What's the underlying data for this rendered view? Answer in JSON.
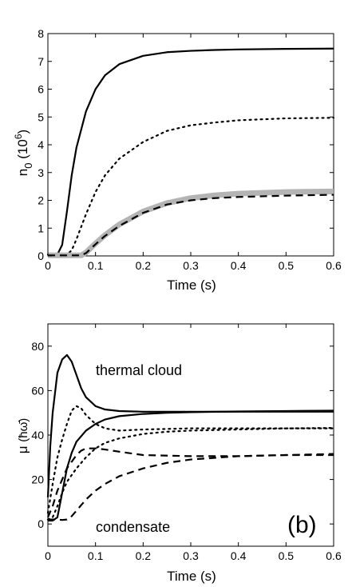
{
  "chart_data": [
    {
      "type": "line",
      "xlabel": "Time  (s)",
      "ylabel_main": "n",
      "ylabel_sub": "0",
      "ylabel_unit_pre": "(10",
      "ylabel_unit_exp": "6",
      "ylabel_unit_post": ")",
      "xlim": [
        0,
        0.6
      ],
      "ylim": [
        0,
        8
      ],
      "xticks": [
        "0",
        "0.1",
        "0.2",
        "0.3",
        "0.4",
        "0.5",
        "0.6"
      ],
      "yticks": [
        "0",
        "1",
        "2",
        "3",
        "4",
        "5",
        "6",
        "7",
        "8"
      ],
      "grid": false,
      "series": [
        {
          "style": "solid",
          "color": "#000000",
          "x": [
            0,
            0.02,
            0.03,
            0.04,
            0.05,
            0.06,
            0.08,
            0.1,
            0.12,
            0.15,
            0.2,
            0.25,
            0.3,
            0.35,
            0.4,
            0.5,
            0.6
          ],
          "y": [
            0.05,
            0.05,
            0.4,
            1.6,
            2.9,
            3.9,
            5.2,
            6.0,
            6.5,
            6.9,
            7.2,
            7.33,
            7.38,
            7.41,
            7.43,
            7.45,
            7.46
          ]
        },
        {
          "style": "dotted",
          "color": "#000000",
          "x": [
            0,
            0.04,
            0.05,
            0.06,
            0.08,
            0.1,
            0.12,
            0.15,
            0.2,
            0.25,
            0.3,
            0.35,
            0.4,
            0.5,
            0.6
          ],
          "y": [
            0.05,
            0.05,
            0.2,
            0.6,
            1.5,
            2.3,
            2.9,
            3.5,
            4.1,
            4.5,
            4.7,
            4.8,
            4.88,
            4.95,
            4.97
          ]
        },
        {
          "style": "thick-gray",
          "color": "#b4b4b4",
          "x": [
            0,
            0.07,
            0.08,
            0.1,
            0.12,
            0.15,
            0.2,
            0.25,
            0.3,
            0.35,
            0.4,
            0.5,
            0.6
          ],
          "y": [
            0.02,
            0.02,
            0.12,
            0.45,
            0.75,
            1.13,
            1.6,
            1.9,
            2.08,
            2.18,
            2.24,
            2.3,
            2.32
          ]
        },
        {
          "style": "dashed",
          "color": "#000000",
          "x": [
            0,
            0.07,
            0.08,
            0.1,
            0.12,
            0.15,
            0.2,
            0.25,
            0.3,
            0.35,
            0.4,
            0.5,
            0.6
          ],
          "y": [
            0.02,
            0.02,
            0.1,
            0.42,
            0.72,
            1.08,
            1.55,
            1.85,
            2.0,
            2.08,
            2.12,
            2.17,
            2.2
          ]
        }
      ]
    },
    {
      "type": "line",
      "xlabel": "Time  (s)",
      "ylabel_main": "μ",
      "ylabel_unit": "(ħω̄)",
      "xlim": [
        0,
        0.6
      ],
      "ylim": [
        -10,
        90
      ],
      "xticks": [
        "0",
        "0.1",
        "0.2",
        "0.3",
        "0.4",
        "0.5",
        "0.6"
      ],
      "yticks": [
        "0",
        "20",
        "40",
        "60",
        "80"
      ],
      "grid": false,
      "annotations": [
        "thermal cloud",
        "condensate",
        "(b)"
      ],
      "series": [
        {
          "style": "solid",
          "color": "#000000",
          "x": [
            0,
            0.005,
            0.01,
            0.02,
            0.03,
            0.04,
            0.05,
            0.06,
            0.07,
            0.08,
            0.1,
            0.12,
            0.15,
            0.2,
            0.3,
            0.6
          ],
          "y": [
            12,
            35,
            50,
            68,
            74,
            76,
            73,
            67,
            61,
            57,
            53,
            51.5,
            50.8,
            50.5,
            50.5,
            50.5
          ]
        },
        {
          "style": "solid",
          "color": "#000000",
          "x": [
            0,
            0.01,
            0.02,
            0.03,
            0.04,
            0.05,
            0.06,
            0.08,
            0.1,
            0.12,
            0.15,
            0.2,
            0.25,
            0.3,
            0.4,
            0.5,
            0.6
          ],
          "y": [
            1.5,
            1.5,
            3,
            14,
            25,
            32,
            37,
            42,
            45,
            47,
            48.5,
            49.5,
            50,
            50.3,
            50.6,
            50.8,
            51
          ]
        },
        {
          "style": "dotted",
          "color": "#000000",
          "x": [
            0,
            0.01,
            0.02,
            0.03,
            0.04,
            0.05,
            0.06,
            0.07,
            0.08,
            0.1,
            0.12,
            0.15,
            0.2,
            0.3,
            0.6
          ],
          "y": [
            5,
            18,
            30,
            38,
            45,
            51,
            53,
            52,
            49,
            45,
            43,
            42,
            42.5,
            43,
            43
          ]
        },
        {
          "style": "dotted",
          "color": "#000000",
          "x": [
            0,
            0.01,
            0.02,
            0.03,
            0.04,
            0.05,
            0.06,
            0.08,
            0.1,
            0.12,
            0.15,
            0.2,
            0.25,
            0.3,
            0.4,
            0.5,
            0.6
          ],
          "y": [
            2,
            3,
            8,
            14,
            19,
            22,
            25,
            30,
            34,
            36.5,
            38.5,
            40.5,
            41.5,
            42,
            42.5,
            43,
            43.2
          ]
        },
        {
          "style": "dashed",
          "color": "#000000",
          "x": [
            0,
            0.01,
            0.02,
            0.03,
            0.04,
            0.05,
            0.06,
            0.07,
            0.08,
            0.1,
            0.12,
            0.15,
            0.2,
            0.3,
            0.4,
            0.5,
            0.6
          ],
          "y": [
            3,
            8,
            15,
            20,
            25,
            28,
            31,
            33,
            34,
            34,
            33.5,
            32.5,
            31,
            30.5,
            30.5,
            31,
            31
          ]
        },
        {
          "style": "dashed",
          "color": "#000000",
          "x": [
            0,
            0.02,
            0.03,
            0.04,
            0.05,
            0.06,
            0.07,
            0.08,
            0.1,
            0.12,
            0.15,
            0.2,
            0.25,
            0.3,
            0.4,
            0.5,
            0.6
          ],
          "y": [
            2,
            2,
            1.8,
            2,
            3.5,
            6,
            8.5,
            11,
            15,
            18,
            21.5,
            25,
            27.5,
            29,
            30.5,
            31,
            31.5
          ]
        }
      ]
    }
  ]
}
